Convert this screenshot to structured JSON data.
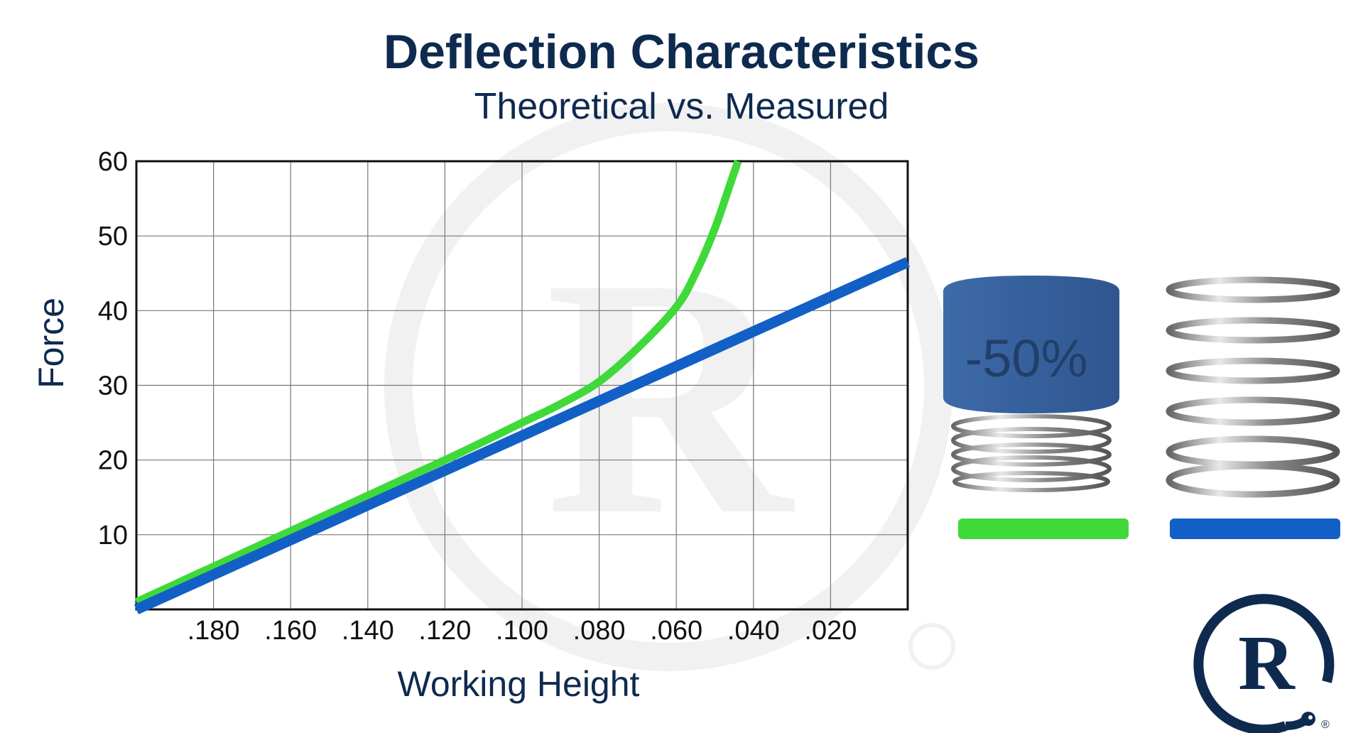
{
  "title": "Deflection Characteristics",
  "subtitle": "Theoretical vs. Measured",
  "chart_data": {
    "type": "line",
    "title": "Deflection Characteristics",
    "subtitle": "Theoretical vs. Measured",
    "xlabel": "Working Height",
    "ylabel": "Force",
    "xlim": [
      0.2,
      0.0
    ],
    "ylim": [
      0,
      60
    ],
    "x_ticks": [
      0.18,
      0.16,
      0.14,
      0.12,
      0.1,
      0.08,
      0.06,
      0.04,
      0.02
    ],
    "x_tick_labels": [
      ".180",
      ".160",
      ".140",
      ".120",
      ".100",
      ".080",
      ".060",
      ".040",
      ".020"
    ],
    "y_ticks": [
      10,
      20,
      30,
      40,
      50,
      60
    ],
    "y_tick_labels": [
      "10",
      "20",
      "30",
      "40",
      "50",
      "60"
    ],
    "grid": true,
    "series": [
      {
        "name": "Wave spring with cap (-50%)",
        "color": "#3fd93a",
        "x": [
          0.2,
          0.16,
          0.12,
          0.1,
          0.09,
          0.08,
          0.07,
          0.06,
          0.055,
          0.05,
          0.046,
          0.044
        ],
        "y": [
          1,
          10.5,
          20,
          25,
          27.5,
          30.5,
          35,
          40.5,
          45,
          51,
          57,
          60
        ]
      },
      {
        "name": "Coil spring",
        "color": "#1260c6",
        "x": [
          0.2,
          0.0
        ],
        "y": [
          0,
          46.5
        ]
      }
    ]
  },
  "legend": {
    "cap_label": "-50%",
    "green_color": "#3fd93a",
    "blue_color": "#1260c6"
  },
  "logo": {
    "letter": "R",
    "mark": "®"
  }
}
